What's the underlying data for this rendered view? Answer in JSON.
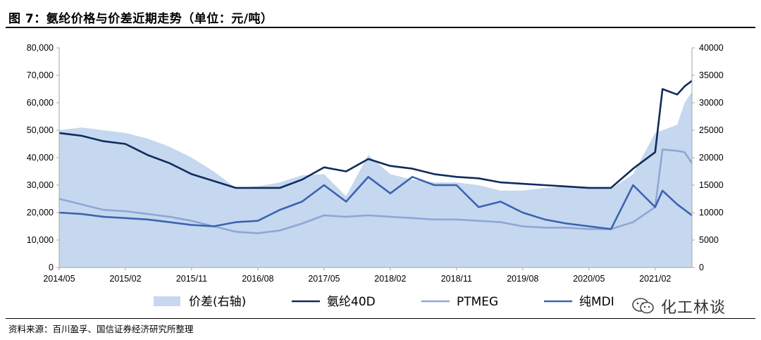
{
  "header": {
    "title": "图 7：氨纶价格与价差近期走势（单位：元/吨）"
  },
  "footer": {
    "source": "资料来源：百川盈孚、国信证券经济研究所整理",
    "watermark": "化工林谈"
  },
  "chart_data": {
    "type": "line",
    "x_ticks": [
      "2014/05",
      "2015/02",
      "2015/11",
      "2016/08",
      "2017/05",
      "2018/02",
      "2018/11",
      "2019/08",
      "2020/05",
      "2021/02"
    ],
    "y_left": {
      "min": 0,
      "max": 80000,
      "step": 10000,
      "tick_labels": [
        "0",
        "10,000",
        "20,000",
        "30,000",
        "40,000",
        "50,000",
        "60,000",
        "70,000",
        "80,000"
      ]
    },
    "y_right": {
      "min": 0,
      "max": 40000,
      "step": 5000,
      "tick_labels": [
        "0",
        "5000",
        "10000",
        "15000",
        "20000",
        "25000",
        "30000",
        "35000",
        "40000"
      ]
    },
    "colors": {
      "spread": "#c5d8ef",
      "spandex": "#102c5c",
      "ptmeg": "#8fa6d6",
      "mdi": "#3d63b1"
    },
    "series": [
      {
        "name": "价差(右轴)",
        "axis": "right",
        "style": "area",
        "color_key": "spread",
        "points": [
          [
            "2014/05",
            25000
          ],
          [
            "2014/08",
            25500
          ],
          [
            "2014/11",
            25000
          ],
          [
            "2015/02",
            24500
          ],
          [
            "2015/05",
            23500
          ],
          [
            "2015/08",
            22000
          ],
          [
            "2015/11",
            20000
          ],
          [
            "2016/02",
            17500
          ],
          [
            "2016/05",
            14500
          ],
          [
            "2016/08",
            14800
          ],
          [
            "2016/11",
            15500
          ],
          [
            "2017/02",
            16800
          ],
          [
            "2017/05",
            17000
          ],
          [
            "2017/08",
            13000
          ],
          [
            "2017/11",
            20500
          ],
          [
            "2018/02",
            17000
          ],
          [
            "2018/05",
            16000
          ],
          [
            "2018/08",
            15500
          ],
          [
            "2018/11",
            15500
          ],
          [
            "2019/02",
            15000
          ],
          [
            "2019/05",
            14000
          ],
          [
            "2019/08",
            14000
          ],
          [
            "2019/11",
            14500
          ],
          [
            "2020/02",
            14800
          ],
          [
            "2020/05",
            14500
          ],
          [
            "2020/08",
            14300
          ],
          [
            "2020/11",
            17000
          ],
          [
            "2021/02",
            24500
          ],
          [
            "2021/05",
            26000
          ],
          [
            "2021/06",
            30000
          ],
          [
            "2021/07",
            32000
          ]
        ]
      },
      {
        "name": "氨纶40D",
        "axis": "left",
        "style": "line",
        "color_key": "spandex",
        "points": [
          [
            "2014/05",
            49000
          ],
          [
            "2014/08",
            48000
          ],
          [
            "2014/11",
            46000
          ],
          [
            "2015/02",
            45000
          ],
          [
            "2015/05",
            41000
          ],
          [
            "2015/08",
            38000
          ],
          [
            "2015/11",
            34000
          ],
          [
            "2016/02",
            31500
          ],
          [
            "2016/05",
            29000
          ],
          [
            "2016/08",
            29000
          ],
          [
            "2016/11",
            29000
          ],
          [
            "2017/02",
            32000
          ],
          [
            "2017/05",
            36500
          ],
          [
            "2017/08",
            35000
          ],
          [
            "2017/11",
            39500
          ],
          [
            "2018/02",
            37000
          ],
          [
            "2018/05",
            36000
          ],
          [
            "2018/08",
            34000
          ],
          [
            "2018/11",
            33000
          ],
          [
            "2019/02",
            32500
          ],
          [
            "2019/05",
            31000
          ],
          [
            "2019/08",
            30500
          ],
          [
            "2019/11",
            30000
          ],
          [
            "2020/02",
            29500
          ],
          [
            "2020/05",
            29000
          ],
          [
            "2020/08",
            29000
          ],
          [
            "2020/11",
            36000
          ],
          [
            "2021/02",
            42000
          ],
          [
            "2021/03",
            65000
          ],
          [
            "2021/05",
            63000
          ],
          [
            "2021/06",
            66000
          ],
          [
            "2021/07",
            68000
          ]
        ]
      },
      {
        "name": "PTMEG",
        "axis": "left",
        "style": "line",
        "color_key": "ptmeg",
        "points": [
          [
            "2014/05",
            25000
          ],
          [
            "2014/08",
            23000
          ],
          [
            "2014/11",
            21000
          ],
          [
            "2015/02",
            20500
          ],
          [
            "2015/05",
            19500
          ],
          [
            "2015/08",
            18500
          ],
          [
            "2015/11",
            17000
          ],
          [
            "2016/02",
            15000
          ],
          [
            "2016/05",
            13000
          ],
          [
            "2016/08",
            12500
          ],
          [
            "2016/11",
            13500
          ],
          [
            "2017/02",
            16000
          ],
          [
            "2017/05",
            19000
          ],
          [
            "2017/08",
            18500
          ],
          [
            "2017/11",
            19000
          ],
          [
            "2018/02",
            18500
          ],
          [
            "2018/05",
            18000
          ],
          [
            "2018/08",
            17500
          ],
          [
            "2018/11",
            17500
          ],
          [
            "2019/02",
            17000
          ],
          [
            "2019/05",
            16500
          ],
          [
            "2019/08",
            15000
          ],
          [
            "2019/11",
            14500
          ],
          [
            "2020/02",
            14500
          ],
          [
            "2020/05",
            14000
          ],
          [
            "2020/08",
            14000
          ],
          [
            "2020/11",
            16500
          ],
          [
            "2021/02",
            22000
          ],
          [
            "2021/03",
            43000
          ],
          [
            "2021/05",
            42500
          ],
          [
            "2021/06",
            42000
          ],
          [
            "2021/07",
            38000
          ]
        ]
      },
      {
        "name": "纯MDI",
        "axis": "left",
        "style": "line",
        "color_key": "mdi",
        "points": [
          [
            "2014/05",
            20000
          ],
          [
            "2014/08",
            19500
          ],
          [
            "2014/11",
            18500
          ],
          [
            "2015/02",
            18000
          ],
          [
            "2015/05",
            17500
          ],
          [
            "2015/08",
            16500
          ],
          [
            "2015/11",
            15500
          ],
          [
            "2016/02",
            15000
          ],
          [
            "2016/05",
            16500
          ],
          [
            "2016/08",
            17000
          ],
          [
            "2016/11",
            21000
          ],
          [
            "2017/02",
            24000
          ],
          [
            "2017/05",
            30000
          ],
          [
            "2017/08",
            24000
          ],
          [
            "2017/11",
            33000
          ],
          [
            "2018/02",
            27000
          ],
          [
            "2018/05",
            33000
          ],
          [
            "2018/08",
            30000
          ],
          [
            "2018/11",
            30000
          ],
          [
            "2019/02",
            22000
          ],
          [
            "2019/05",
            24000
          ],
          [
            "2019/08",
            20000
          ],
          [
            "2019/11",
            17500
          ],
          [
            "2020/02",
            16000
          ],
          [
            "2020/05",
            15000
          ],
          [
            "2020/08",
            14000
          ],
          [
            "2020/11",
            30000
          ],
          [
            "2021/02",
            22000
          ],
          [
            "2021/03",
            28000
          ],
          [
            "2021/05",
            23000
          ],
          [
            "2021/07",
            19000
          ]
        ]
      }
    ]
  }
}
